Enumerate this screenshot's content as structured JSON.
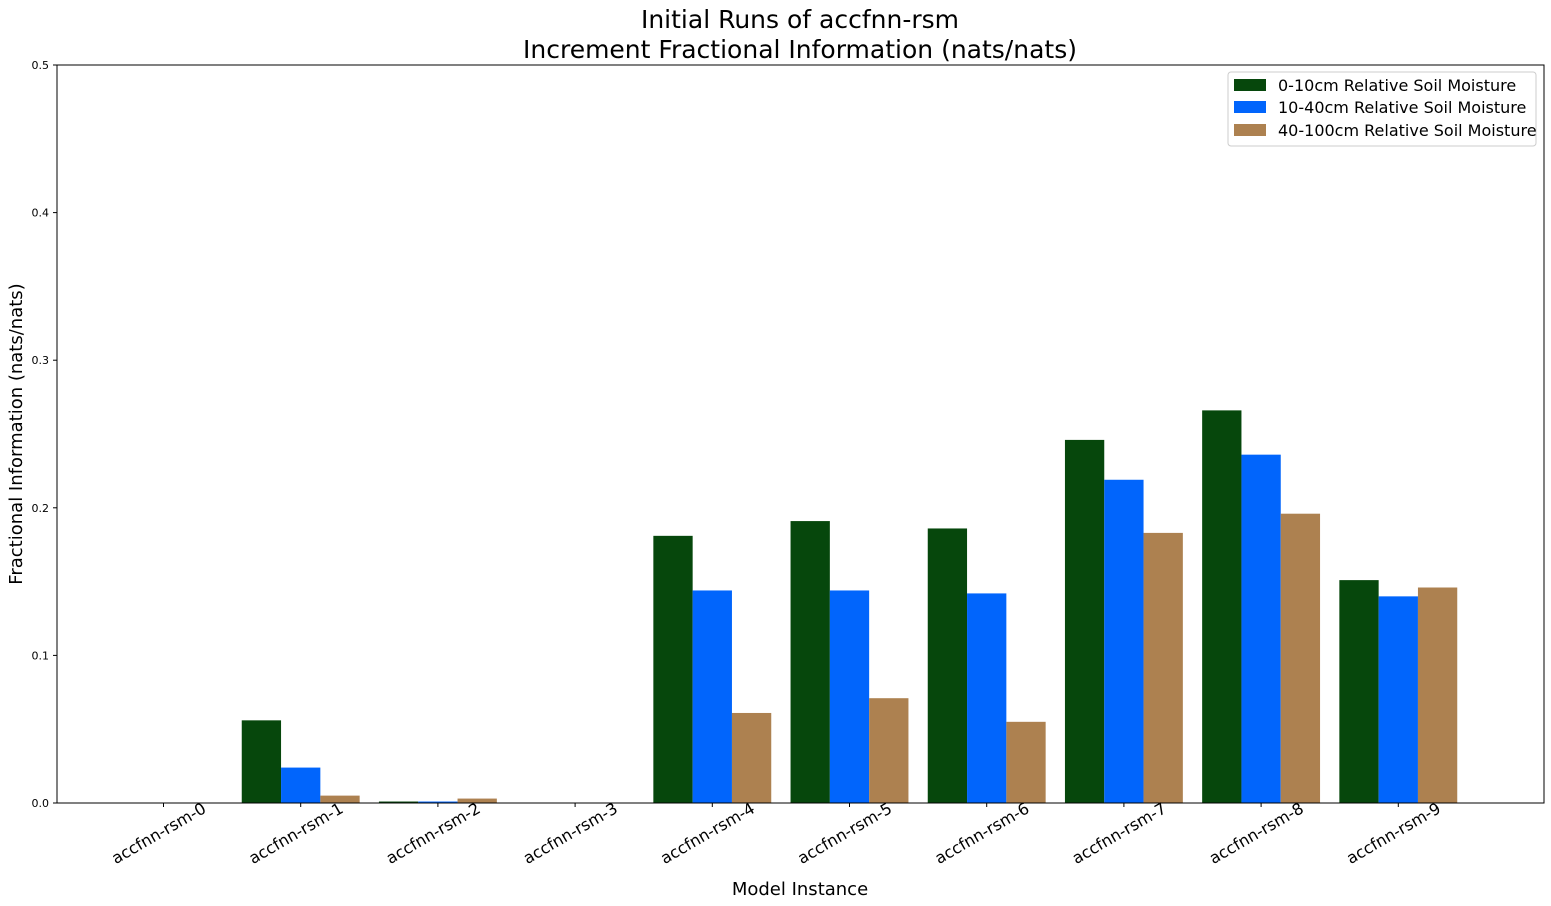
{
  "chart_data": {
    "type": "bar",
    "title": "Initial Runs of accfnn-rsm",
    "subtitle": "Increment Fractional Information (nats/nats)",
    "xlabel": "Model Instance",
    "ylabel": "Fractional Information (nats/nats)",
    "ylim": [
      0,
      0.5
    ],
    "yticks": [
      "0.0",
      "0.1",
      "0.2",
      "0.3",
      "0.4",
      "0.5"
    ],
    "grid": false,
    "legend_position": "top-right",
    "categories": [
      "accfnn-rsm-0",
      "accfnn-rsm-1",
      "accfnn-rsm-2",
      "accfnn-rsm-3",
      "accfnn-rsm-4",
      "accfnn-rsm-5",
      "accfnn-rsm-6",
      "accfnn-rsm-7",
      "accfnn-rsm-8",
      "accfnn-rsm-9"
    ],
    "series": [
      {
        "name": "0-10cm Relative Soil Moisture",
        "color": "#06470c",
        "values": [
          0.0,
          0.056,
          0.001,
          0.0,
          0.181,
          0.191,
          0.186,
          0.246,
          0.266,
          0.151
        ]
      },
      {
        "name": "10-40cm Relative Soil Moisture",
        "color": "#0165fc",
        "values": [
          0.0,
          0.024,
          0.001,
          0.0,
          0.144,
          0.144,
          0.142,
          0.219,
          0.236,
          0.14
        ]
      },
      {
        "name": "40-100cm Relative Soil Moisture",
        "color": "#ad8150",
        "values": [
          0.0,
          0.005,
          0.003,
          0.0,
          0.061,
          0.071,
          0.055,
          0.183,
          0.196,
          0.146
        ]
      }
    ]
  }
}
